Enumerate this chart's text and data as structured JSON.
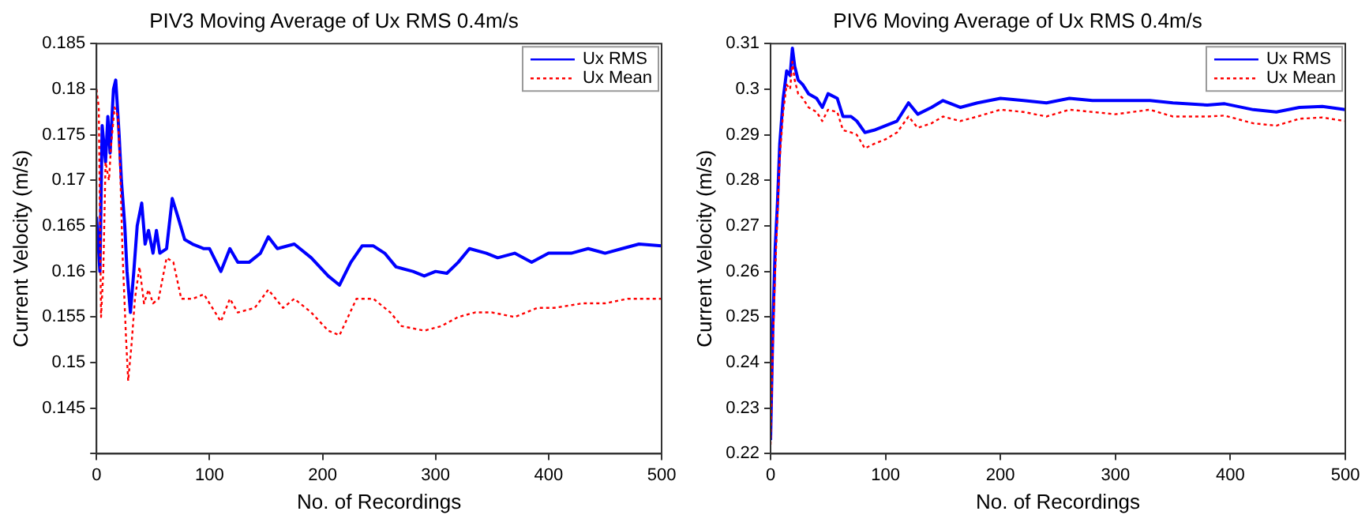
{
  "chart_data": [
    {
      "type": "line",
      "title": "PIV3 Moving Average of Ux RMS 0.4m/s",
      "xlabel": "No. of Recordings",
      "ylabel": "Current Velocity (m/s)",
      "xlim": [
        0,
        500
      ],
      "xticks": [
        0,
        100,
        200,
        300,
        400,
        500
      ],
      "ylim": [
        0.14,
        0.185
      ],
      "yticks": [
        {
          "value": 0.14,
          "label": null
        },
        0.145,
        0.15,
        0.155,
        0.16,
        0.165,
        0.17,
        0.175,
        0.18,
        0.185
      ],
      "grid": false,
      "legend": "top right",
      "marker": "none",
      "series": [
        {
          "name": "Ux RMS",
          "color": "#0000ff",
          "line_style": "solid",
          "x": [
            0,
            3,
            5,
            8,
            10,
            12,
            15,
            17,
            20,
            22,
            25,
            27,
            30,
            33,
            36,
            40,
            43,
            46,
            50,
            53,
            56,
            62,
            67,
            72,
            78,
            85,
            95,
            100,
            110,
            118,
            125,
            135,
            145,
            152,
            160,
            175,
            190,
            205,
            215,
            225,
            235,
            245,
            255,
            265,
            280,
            290,
            300,
            310,
            320,
            330,
            345,
            355,
            370,
            385,
            400,
            420,
            435,
            450,
            465,
            480,
            500
          ],
          "values": [
            0.166,
            0.16,
            0.176,
            0.172,
            0.177,
            0.173,
            0.18,
            0.181,
            0.175,
            0.17,
            0.165,
            0.16,
            0.1555,
            0.16,
            0.165,
            0.1675,
            0.163,
            0.1645,
            0.162,
            0.1645,
            0.162,
            0.1625,
            0.168,
            0.166,
            0.1635,
            0.163,
            0.1625,
            0.1625,
            0.16,
            0.1625,
            0.161,
            0.161,
            0.162,
            0.1638,
            0.1625,
            0.163,
            0.1615,
            0.1595,
            0.1585,
            0.161,
            0.1628,
            0.1628,
            0.162,
            0.1605,
            0.16,
            0.1595,
            0.16,
            0.1598,
            0.161,
            0.1625,
            0.162,
            0.1615,
            0.162,
            0.161,
            0.162,
            0.162,
            0.1625,
            0.162,
            0.1625,
            0.163,
            0.1628
          ]
        },
        {
          "name": "Ux Mean",
          "color": "#ff0000",
          "line_style": "dotted",
          "x": [
            0,
            2,
            4,
            6,
            8,
            11,
            13,
            16,
            19,
            21,
            23,
            26,
            28,
            31,
            34,
            38,
            42,
            46,
            50,
            55,
            62,
            68,
            75,
            85,
            95,
            100,
            110,
            118,
            125,
            140,
            152,
            165,
            175,
            190,
            205,
            215,
            230,
            245,
            260,
            270,
            290,
            305,
            320,
            335,
            350,
            370,
            390,
            405,
            430,
            450,
            470,
            500
          ],
          "values": [
            0.18,
            0.178,
            0.155,
            0.16,
            0.172,
            0.17,
            0.174,
            0.178,
            0.177,
            0.171,
            0.162,
            0.153,
            0.148,
            0.152,
            0.157,
            0.1605,
            0.1565,
            0.158,
            0.1565,
            0.157,
            0.1615,
            0.161,
            0.157,
            0.157,
            0.1575,
            0.1565,
            0.1545,
            0.157,
            0.1555,
            0.156,
            0.158,
            0.156,
            0.157,
            0.1555,
            0.1535,
            0.153,
            0.157,
            0.157,
            0.1555,
            0.154,
            0.1535,
            0.154,
            0.155,
            0.1555,
            0.1555,
            0.155,
            0.156,
            0.156,
            0.1565,
            0.1565,
            0.157,
            0.157
          ]
        }
      ]
    },
    {
      "type": "line",
      "title": "PIV6 Moving Average of Ux RMS 0.4m/s",
      "xlabel": "No. of Recordings",
      "ylabel": "Current Velocity (m/s)",
      "xlim": [
        0,
        500
      ],
      "xticks": [
        0,
        100,
        200,
        300,
        400,
        500
      ],
      "ylim": [
        0.22,
        0.31
      ],
      "yticks": [
        0.22,
        0.23,
        0.24,
        0.25,
        0.26,
        0.27,
        0.28,
        0.29,
        0.3,
        0.31
      ],
      "grid": false,
      "legend": "top right",
      "marker": "none",
      "series": [
        {
          "name": "Ux RMS",
          "color": "#0000ff",
          "line_style": "solid",
          "x": [
            0,
            2,
            4,
            6,
            8,
            11,
            14,
            17,
            19,
            21,
            24,
            28,
            33,
            40,
            45,
            50,
            58,
            63,
            70,
            75,
            82,
            90,
            100,
            110,
            120,
            128,
            140,
            150,
            165,
            180,
            200,
            220,
            240,
            260,
            280,
            300,
            330,
            350,
            380,
            395,
            420,
            440,
            460,
            480,
            500
          ],
          "values": [
            0.223,
            0.248,
            0.265,
            0.275,
            0.288,
            0.298,
            0.304,
            0.303,
            0.309,
            0.305,
            0.302,
            0.301,
            0.299,
            0.298,
            0.296,
            0.299,
            0.298,
            0.294,
            0.294,
            0.293,
            0.2905,
            0.291,
            0.292,
            0.293,
            0.297,
            0.2945,
            0.296,
            0.2975,
            0.296,
            0.297,
            0.298,
            0.2975,
            0.297,
            0.298,
            0.2975,
            0.2975,
            0.2975,
            0.297,
            0.2965,
            0.2968,
            0.2955,
            0.295,
            0.296,
            0.2962,
            0.2955
          ]
        },
        {
          "name": "Ux Mean",
          "color": "#ff0000",
          "line_style": "dotted",
          "x": [
            0,
            2,
            4,
            6,
            8,
            11,
            14,
            17,
            19,
            21,
            24,
            28,
            33,
            40,
            45,
            50,
            58,
            63,
            70,
            75,
            82,
            90,
            100,
            110,
            120,
            128,
            140,
            150,
            165,
            180,
            200,
            220,
            240,
            260,
            280,
            300,
            330,
            350,
            380,
            395,
            420,
            440,
            460,
            480,
            500
          ],
          "values": [
            0.222,
            0.244,
            0.26,
            0.272,
            0.285,
            0.295,
            0.301,
            0.3,
            0.306,
            0.302,
            0.299,
            0.298,
            0.296,
            0.295,
            0.293,
            0.2955,
            0.295,
            0.291,
            0.2905,
            0.29,
            0.287,
            0.288,
            0.289,
            0.2905,
            0.294,
            0.2915,
            0.2925,
            0.294,
            0.293,
            0.294,
            0.2955,
            0.295,
            0.294,
            0.2955,
            0.295,
            0.2945,
            0.2955,
            0.294,
            0.294,
            0.2942,
            0.2925,
            0.292,
            0.2935,
            0.2938,
            0.293
          ]
        }
      ]
    }
  ]
}
